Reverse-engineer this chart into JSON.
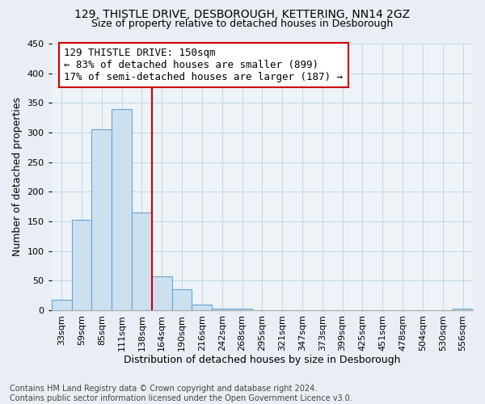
{
  "title": "129, THISTLE DRIVE, DESBOROUGH, KETTERING, NN14 2GZ",
  "subtitle": "Size of property relative to detached houses in Desborough",
  "xlabel": "Distribution of detached houses by size in Desborough",
  "ylabel": "Number of detached properties",
  "categories": [
    "33sqm",
    "59sqm",
    "85sqm",
    "111sqm",
    "138sqm",
    "164sqm",
    "190sqm",
    "216sqm",
    "242sqm",
    "268sqm",
    "295sqm",
    "321sqm",
    "347sqm",
    "373sqm",
    "399sqm",
    "425sqm",
    "451sqm",
    "478sqm",
    "504sqm",
    "530sqm",
    "556sqm"
  ],
  "values": [
    18,
    153,
    305,
    340,
    165,
    57,
    35,
    9,
    2,
    2,
    0,
    0,
    0,
    0,
    0,
    0,
    0,
    0,
    0,
    0,
    2
  ],
  "bar_color": "#cce0f0",
  "bar_edge_color": "#6aa6cd",
  "highlight_line_index": 5,
  "highlight_line_color": "#cc0000",
  "annotation_text": "129 THISTLE DRIVE: 150sqm\n← 83% of detached houses are smaller (899)\n17% of semi-detached houses are larger (187) →",
  "annotation_box_color": "white",
  "annotation_box_edge_color": "#cc0000",
  "ylim": [
    0,
    450
  ],
  "yticks": [
    0,
    50,
    100,
    150,
    200,
    250,
    300,
    350,
    400,
    450
  ],
  "footer_line1": "Contains HM Land Registry data © Crown copyright and database right 2024.",
  "footer_line2": "Contains public sector information licensed under the Open Government Licence v3.0.",
  "background_color": "#e8eef4",
  "plot_background_color": "#eef3f8",
  "grid_color": "#c5d5e5",
  "title_fontsize": 10,
  "subtitle_fontsize": 9,
  "axis_label_fontsize": 9,
  "tick_fontsize": 8,
  "footer_fontsize": 7,
  "annotation_fontsize": 9
}
